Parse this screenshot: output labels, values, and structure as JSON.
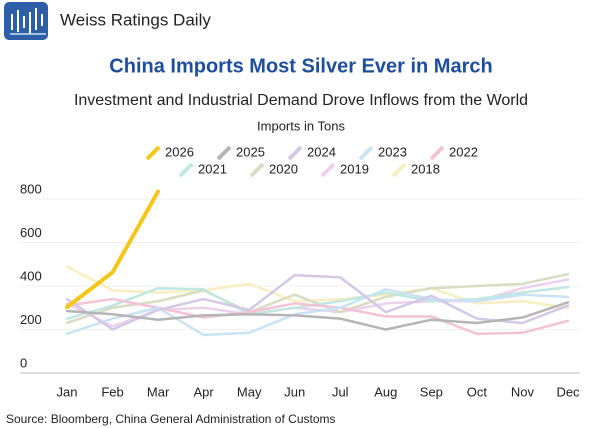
{
  "header": {
    "brand": "Weiss Ratings Daily"
  },
  "chart_data": {
    "type": "line",
    "title": "China Imports Most Silver Ever in March",
    "subtitle": "Investment and Industrial Demand Drove Inflows from the World",
    "ylabel": "Imports in Tons",
    "categories": [
      "Jan",
      "Feb",
      "Mar",
      "Apr",
      "May",
      "Jun",
      "Jul",
      "Aug",
      "Sep",
      "Oct",
      "Nov",
      "Dec"
    ],
    "ylim": [
      0,
      860
    ],
    "yticks": [
      0,
      200,
      400,
      600,
      800
    ],
    "grid": true,
    "series": [
      {
        "name": "2026",
        "color": "#f5c518",
        "values": [
          303,
          463,
          835,
          null,
          null,
          null,
          null,
          null,
          null,
          null,
          null,
          null
        ]
      },
      {
        "name": "2025",
        "color": "#b5b5b5",
        "values": [
          285,
          270,
          245,
          265,
          270,
          265,
          250,
          200,
          245,
          230,
          255,
          325
        ]
      },
      {
        "name": "2024",
        "color": "#d3c8e7",
        "values": [
          340,
          200,
          290,
          340,
          290,
          450,
          440,
          280,
          355,
          250,
          230,
          310
        ]
      },
      {
        "name": "2023",
        "color": "#c8e3f3",
        "values": [
          180,
          250,
          300,
          175,
          185,
          270,
          300,
          385,
          340,
          330,
          360,
          350
        ]
      },
      {
        "name": "2022",
        "color": "#f4c2d5",
        "values": [
          310,
          340,
          300,
          255,
          280,
          320,
          300,
          260,
          260,
          180,
          185,
          240
        ]
      },
      {
        "name": "2021",
        "color": "#c0e7e2",
        "values": [
          250,
          310,
          390,
          385,
          270,
          300,
          330,
          370,
          330,
          340,
          370,
          395
        ]
      },
      {
        "name": "2020",
        "color": "#d8dcc0",
        "values": [
          230,
          300,
          330,
          380,
          280,
          360,
          280,
          350,
          390,
          400,
          410,
          455
        ]
      },
      {
        "name": "2019",
        "color": "#edd0ec",
        "values": [
          320,
          215,
          290,
          300,
          270,
          300,
          280,
          320,
          330,
          330,
          390,
          430
        ]
      },
      {
        "name": "2018",
        "color": "#f8eec2",
        "values": [
          490,
          380,
          370,
          380,
          410,
          330,
          340,
          360,
          390,
          320,
          330,
          300
        ]
      }
    ]
  },
  "source": "Source: Bloomberg, China General Administration of Customs"
}
